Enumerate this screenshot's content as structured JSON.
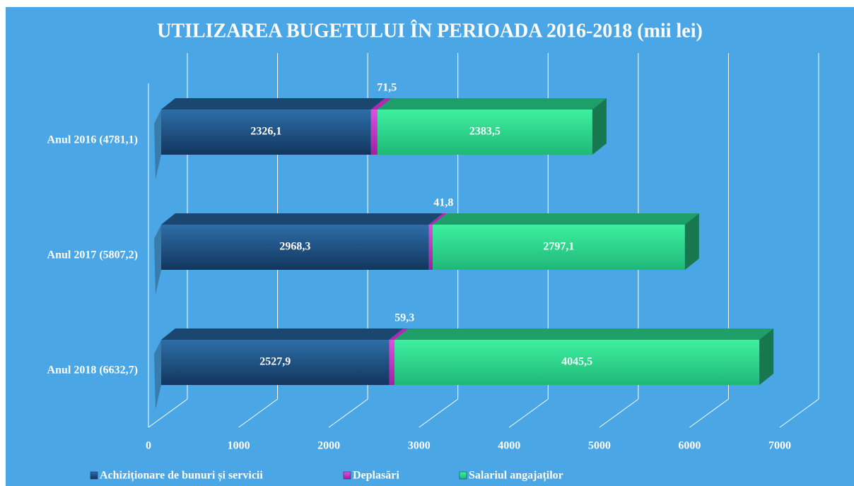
{
  "chart_data": {
    "type": "bar3d_stacked_horizontal",
    "title": "UTILIZAREA BUGETULUI ÎN PERIOADA 2016-2018 (mii lei)",
    "categories": [
      "Anul 2016 (4781,1)",
      "Anul 2017 (5807,2)",
      "Anul 2018 (6632,7)"
    ],
    "series": [
      {
        "name": "Achiziționare de bunuri și servicii",
        "color": "#1f4e79",
        "values": [
          2326.1,
          2968.3,
          2527.9
        ],
        "value_labels": [
          "2326,1",
          "2968,3",
          "2527,9"
        ]
      },
      {
        "name": "Deplasări",
        "color": "#d033d0",
        "values": [
          71.5,
          41.8,
          59.3
        ],
        "value_labels": [
          "71,5",
          "41,8",
          "59,3"
        ]
      },
      {
        "name": "Salariul angajaților",
        "color": "#2ed88f",
        "values": [
          2383.5,
          2797.1,
          4045.5
        ],
        "value_labels": [
          "2383,5",
          "2797,1",
          "4045,5"
        ]
      }
    ],
    "xlim": [
      0,
      7000
    ],
    "xticks": [
      0,
      1000,
      2000,
      3000,
      4000,
      5000,
      6000,
      7000
    ],
    "grid": true,
    "legend": "bottom"
  }
}
